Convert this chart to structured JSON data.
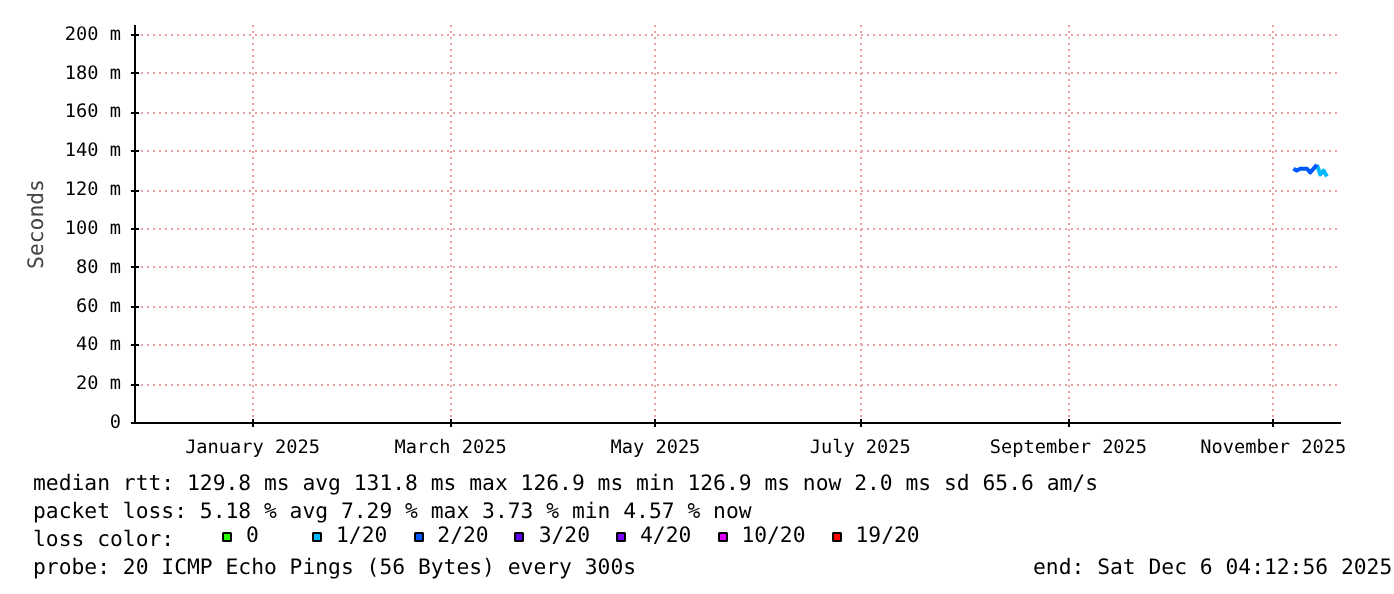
{
  "chart_data": {
    "type": "line",
    "ylabel": "Seconds",
    "legend_title": "loss color:",
    "legend": "bottom",
    "grid": true,
    "xlim": [
      "2024-12-12",
      "2025-12-06T04:12"
    ],
    "xticks": [
      {
        "value": "2025-01-16",
        "label": "January 2025"
      },
      {
        "value": "2025-03-16",
        "label": "March 2025"
      },
      {
        "value": "2025-05-16",
        "label": "May 2025"
      },
      {
        "value": "2025-07-16",
        "label": "July 2025"
      },
      {
        "value": "2025-09-16",
        "label": "September 2025"
      },
      {
        "value": "2025-11-16",
        "label": "November 2025"
      }
    ],
    "ylim": [
      0,
      205
    ],
    "yticks": [
      0,
      {
        "value": 20,
        "label": "20 m"
      },
      {
        "value": 40,
        "label": "40 m"
      },
      {
        "value": 60,
        "label": "60 m"
      },
      {
        "value": 80,
        "label": "80 m"
      },
      {
        "value": 100,
        "label": "100 m"
      },
      {
        "value": 120,
        "label": "120 m"
      },
      {
        "value": 140,
        "label": "140 m"
      },
      {
        "value": 160,
        "label": "160 m"
      },
      {
        "value": 180,
        "label": "180 m"
      },
      {
        "value": 200,
        "label": "200 m"
      }
    ],
    "x": [
      "2025-11-22",
      "2025-11-23",
      "2025-11-24",
      "2025-11-25",
      "2025-11-26",
      "2025-11-27",
      "2025-11-28",
      "2025-11-29",
      "2025-11-30",
      "2025-12-01",
      "2025-12-02"
    ],
    "series": [
      {
        "name": "0",
        "color": "#26ff00",
        "values": [
          null,
          null,
          null,
          null,
          null,
          null,
          null,
          null,
          null,
          null,
          null
        ]
      },
      {
        "name": "1/20",
        "color": "#00b8ff",
        "values": [
          null,
          null,
          null,
          null,
          null,
          null,
          null,
          133,
          128,
          130,
          127
        ]
      },
      {
        "name": "2/20",
        "color": "#0059ff",
        "values": [
          131,
          130,
          131,
          131,
          131,
          129,
          131,
          133,
          null,
          null,
          null
        ]
      },
      {
        "name": "3/20",
        "color": "#5e00ff",
        "values": [
          null,
          null,
          null,
          null,
          null,
          null,
          null,
          null,
          null,
          null,
          null
        ]
      },
      {
        "name": "4/20",
        "color": "#7e00ff",
        "values": [
          null,
          null,
          null,
          null,
          null,
          null,
          null,
          null,
          null,
          null,
          null
        ]
      },
      {
        "name": "10/20",
        "color": "#dd00ff",
        "values": [
          null,
          null,
          null,
          null,
          null,
          null,
          null,
          null,
          null,
          null,
          null
        ]
      },
      {
        "name": "19/20",
        "color": "#ff0000",
        "values": [
          null,
          null,
          null,
          null,
          null,
          null,
          null,
          null,
          null,
          null,
          null
        ]
      }
    ],
    "annotations": [
      "median rtt:  129.8 ms avg  131.8 ms max  126.9 ms min  126.9 ms now  2.0 ms sd  65.6   am/s",
      "packet loss: 5.18 % avg  7.29 % max  3.73 % min  4.57 % now",
      "probe:       20 ICMP Echo Pings (56 Bytes) every 300s",
      "end: Sat Dec  6 04:12:56 2025"
    ]
  }
}
